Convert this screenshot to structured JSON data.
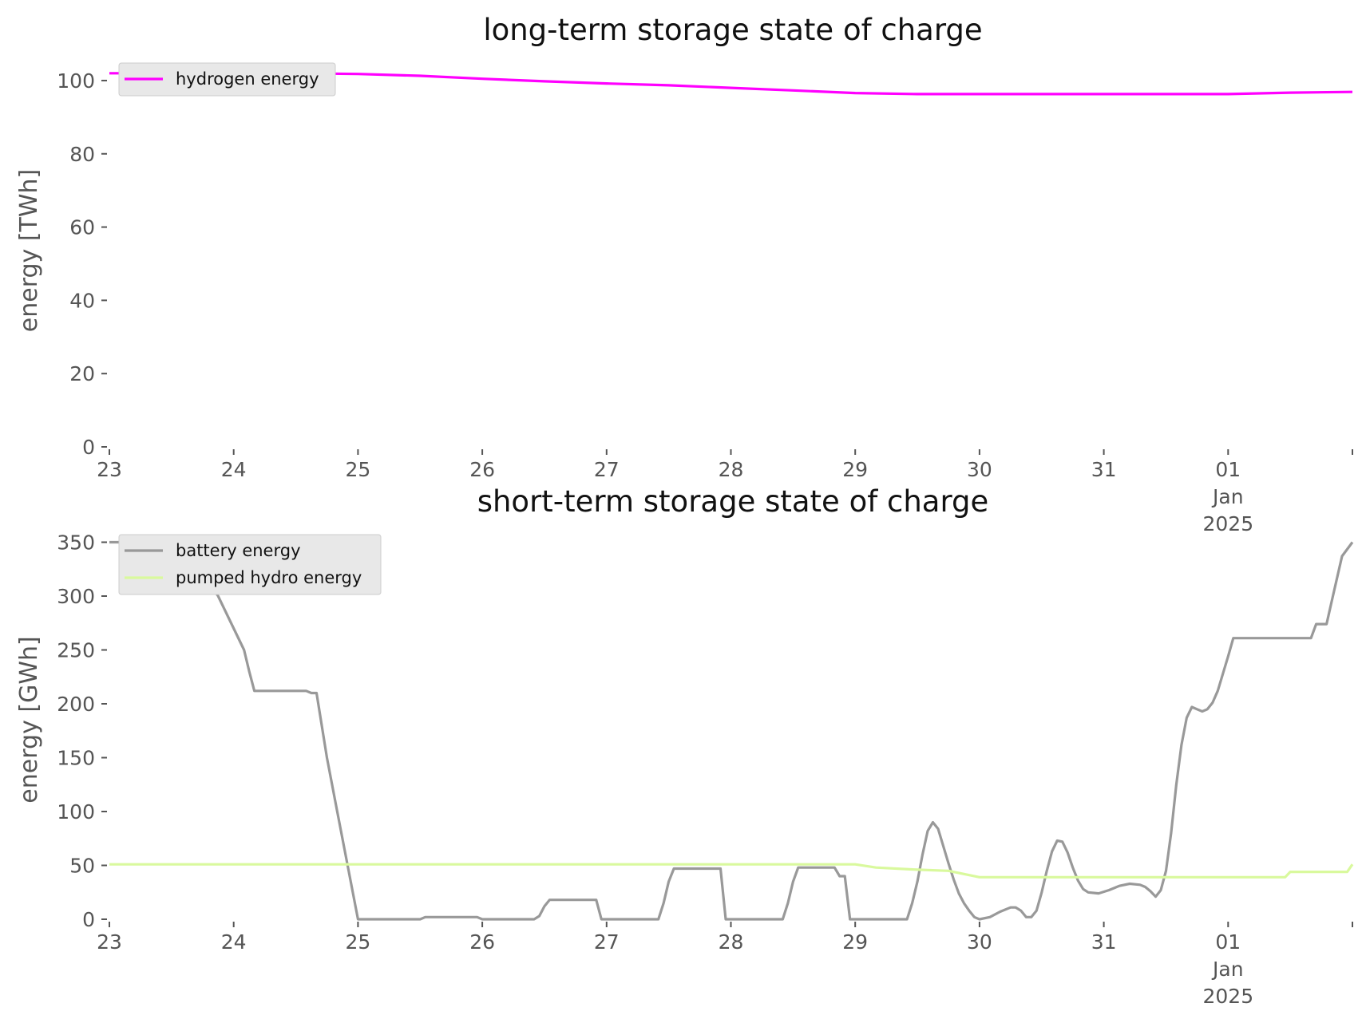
{
  "chart_data": [
    {
      "type": "line",
      "title": "long-term storage state of charge",
      "xlabel": "",
      "ylabel": "energy [TWh]",
      "ylim": [
        0,
        105
      ],
      "xlim": [
        "2024-12-23 00:00",
        "2025-01-02 00:00"
      ],
      "grid": false,
      "legend": "top-left",
      "y_ticks": [
        0,
        20,
        40,
        60,
        80,
        100
      ],
      "x_ticks": [
        {
          "at": "2024-12-23",
          "label": "23"
        },
        {
          "at": "2024-12-24",
          "label": "24"
        },
        {
          "at": "2024-12-25",
          "label": "25"
        },
        {
          "at": "2024-12-26",
          "label": "26"
        },
        {
          "at": "2024-12-27",
          "label": "27"
        },
        {
          "at": "2024-12-28",
          "label": "28"
        },
        {
          "at": "2024-12-29",
          "label": "29"
        },
        {
          "at": "2024-12-30",
          "label": "30"
        },
        {
          "at": "2024-12-31",
          "label": "31"
        },
        {
          "at": "2025-01-01",
          "label": "01\nJan\n2025"
        }
      ],
      "series": [
        {
          "name": "hydrogen energy",
          "color": "#ff00ff",
          "points": [
            [
              "2024-12-23 00:00",
              102.0
            ],
            [
              "2024-12-23 12:00",
              102.0
            ],
            [
              "2024-12-24 00:00",
              102.0
            ],
            [
              "2024-12-24 12:00",
              102.0
            ],
            [
              "2024-12-25 00:00",
              101.8
            ],
            [
              "2024-12-25 12:00",
              101.3
            ],
            [
              "2024-12-26 00:00",
              100.5
            ],
            [
              "2024-12-26 12:00",
              99.8
            ],
            [
              "2024-12-27 00:00",
              99.2
            ],
            [
              "2024-12-27 12:00",
              98.7
            ],
            [
              "2024-12-28 00:00",
              98.0
            ],
            [
              "2024-12-28 12:00",
              97.3
            ],
            [
              "2024-12-29 00:00",
              96.6
            ],
            [
              "2024-12-29 12:00",
              96.3
            ],
            [
              "2024-12-30 00:00",
              96.3
            ],
            [
              "2024-12-30 12:00",
              96.3
            ],
            [
              "2024-12-31 00:00",
              96.3
            ],
            [
              "2024-12-31 12:00",
              96.3
            ],
            [
              "2025-01-01 00:00",
              96.3
            ],
            [
              "2025-01-01 12:00",
              96.7
            ],
            [
              "2025-01-02 00:00",
              96.9
            ]
          ]
        }
      ]
    },
    {
      "type": "line",
      "title": "short-term storage state of charge",
      "xlabel": "",
      "ylabel": "energy [GWh]",
      "ylim": [
        0,
        360
      ],
      "xlim": [
        "2024-12-23 00:00",
        "2025-01-02 00:00"
      ],
      "grid": false,
      "legend": "top-left",
      "y_ticks": [
        0,
        50,
        100,
        150,
        200,
        250,
        300,
        350
      ],
      "x_ticks": [
        {
          "at": "2024-12-23",
          "label": "23"
        },
        {
          "at": "2024-12-24",
          "label": "24"
        },
        {
          "at": "2024-12-25",
          "label": "25"
        },
        {
          "at": "2024-12-26",
          "label": "26"
        },
        {
          "at": "2024-12-27",
          "label": "27"
        },
        {
          "at": "2024-12-28",
          "label": "28"
        },
        {
          "at": "2024-12-29",
          "label": "29"
        },
        {
          "at": "2024-12-30",
          "label": "30"
        },
        {
          "at": "2024-12-31",
          "label": "31"
        },
        {
          "at": "2025-01-01",
          "label": "01\nJan\n2025"
        }
      ],
      "series": [
        {
          "name": "battery energy",
          "color": "#999999",
          "points": [
            [
              "2024-12-23 00:00",
              350
            ],
            [
              "2024-12-23 15:00",
              350
            ],
            [
              "2024-12-23 18:00",
              320
            ],
            [
              "2024-12-23 21:00",
              300
            ],
            [
              "2024-12-24 00:00",
              270
            ],
            [
              "2024-12-24 02:00",
              250
            ],
            [
              "2024-12-24 03:00",
              230
            ],
            [
              "2024-12-24 04:00",
              212
            ],
            [
              "2024-12-24 14:00",
              212
            ],
            [
              "2024-12-24 15:00",
              210
            ],
            [
              "2024-12-24 16:00",
              210
            ],
            [
              "2024-12-24 18:00",
              150
            ],
            [
              "2024-12-24 20:00",
              100
            ],
            [
              "2024-12-24 22:00",
              50
            ],
            [
              "2024-12-25 00:00",
              0
            ],
            [
              "2024-12-25 12:00",
              0
            ],
            [
              "2024-12-25 13:00",
              2
            ],
            [
              "2024-12-25 23:00",
              2
            ],
            [
              "2024-12-26 00:00",
              0
            ],
            [
              "2024-12-26 10:00",
              0
            ],
            [
              "2024-12-26 11:00",
              3
            ],
            [
              "2024-12-26 12:00",
              12
            ],
            [
              "2024-12-26 13:00",
              18
            ],
            [
              "2024-12-26 22:00",
              18
            ],
            [
              "2024-12-26 23:00",
              0
            ],
            [
              "2024-12-27 10:00",
              0
            ],
            [
              "2024-12-27 11:00",
              15
            ],
            [
              "2024-12-27 12:00",
              35
            ],
            [
              "2024-12-27 13:00",
              47
            ],
            [
              "2024-12-27 22:00",
              47
            ],
            [
              "2024-12-27 23:00",
              0
            ],
            [
              "2024-12-28 10:00",
              0
            ],
            [
              "2024-12-28 11:00",
              15
            ],
            [
              "2024-12-28 12:00",
              35
            ],
            [
              "2024-12-28 13:00",
              48
            ],
            [
              "2024-12-28 20:00",
              48
            ],
            [
              "2024-12-28 21:00",
              40
            ],
            [
              "2024-12-28 22:00",
              40
            ],
            [
              "2024-12-28 23:00",
              0
            ],
            [
              "2024-12-29 10:00",
              0
            ],
            [
              "2024-12-29 11:00",
              15
            ],
            [
              "2024-12-29 12:00",
              35
            ],
            [
              "2024-12-29 13:00",
              60
            ],
            [
              "2024-12-29 14:00",
              82
            ],
            [
              "2024-12-29 15:00",
              90
            ],
            [
              "2024-12-29 16:00",
              84
            ],
            [
              "2024-12-29 17:00",
              68
            ],
            [
              "2024-12-29 18:00",
              52
            ],
            [
              "2024-12-29 19:00",
              37
            ],
            [
              "2024-12-29 20:00",
              24
            ],
            [
              "2024-12-29 21:00",
              15
            ],
            [
              "2024-12-29 22:00",
              8
            ],
            [
              "2024-12-29 23:00",
              2
            ],
            [
              "2024-12-30 00:00",
              0
            ],
            [
              "2024-12-30 02:00",
              2
            ],
            [
              "2024-12-30 04:00",
              7
            ],
            [
              "2024-12-30 06:00",
              11
            ],
            [
              "2024-12-30 07:00",
              11
            ],
            [
              "2024-12-30 08:00",
              8
            ],
            [
              "2024-12-30 09:00",
              2
            ],
            [
              "2024-12-30 10:00",
              2
            ],
            [
              "2024-12-30 11:00",
              8
            ],
            [
              "2024-12-30 12:00",
              25
            ],
            [
              "2024-12-30 13:00",
              45
            ],
            [
              "2024-12-30 14:00",
              63
            ],
            [
              "2024-12-30 15:00",
              73
            ],
            [
              "2024-12-30 16:00",
              72
            ],
            [
              "2024-12-30 17:00",
              62
            ],
            [
              "2024-12-30 18:00",
              48
            ],
            [
              "2024-12-30 19:00",
              36
            ],
            [
              "2024-12-30 20:00",
              28
            ],
            [
              "2024-12-30 21:00",
              25
            ],
            [
              "2024-12-30 23:00",
              24
            ],
            [
              "2024-12-31 01:00",
              27
            ],
            [
              "2024-12-31 03:00",
              31
            ],
            [
              "2024-12-31 05:00",
              33
            ],
            [
              "2024-12-31 07:00",
              32
            ],
            [
              "2024-12-31 08:00",
              30
            ],
            [
              "2024-12-31 09:00",
              26
            ],
            [
              "2024-12-31 10:00",
              21
            ],
            [
              "2024-12-31 11:00",
              27
            ],
            [
              "2024-12-31 12:00",
              45
            ],
            [
              "2024-12-31 13:00",
              80
            ],
            [
              "2024-12-31 14:00",
              125
            ],
            [
              "2024-12-31 15:00",
              162
            ],
            [
              "2024-12-31 16:00",
              187
            ],
            [
              "2024-12-31 17:00",
              197
            ],
            [
              "2024-12-31 18:00",
              195
            ],
            [
              "2024-12-31 19:00",
              193
            ],
            [
              "2024-12-31 20:00",
              195
            ],
            [
              "2024-12-31 21:00",
              201
            ],
            [
              "2024-12-31 22:00",
              212
            ],
            [
              "2024-12-31 23:00",
              228
            ],
            [
              "2025-01-01 00:00",
              244
            ],
            [
              "2025-01-01 01:00",
              261
            ],
            [
              "2025-01-01 16:00",
              261
            ],
            [
              "2025-01-01 17:00",
              274
            ],
            [
              "2025-01-01 19:00",
              274
            ],
            [
              "2025-01-01 20:00",
              295
            ],
            [
              "2025-01-01 21:00",
              316
            ],
            [
              "2025-01-01 22:00",
              337
            ],
            [
              "2025-01-02 00:00",
              350
            ]
          ]
        },
        {
          "name": "pumped hydro energy",
          "color": "#d9f99d",
          "points": [
            [
              "2024-12-23 00:00",
              51
            ],
            [
              "2024-12-28 23:00",
              51
            ],
            [
              "2024-12-29 00:00",
              51
            ],
            [
              "2024-12-29 04:00",
              48
            ],
            [
              "2024-12-29 12:00",
              46
            ],
            [
              "2024-12-29 18:00",
              45
            ],
            [
              "2024-12-30 00:00",
              39
            ],
            [
              "2024-12-30 12:00",
              39
            ],
            [
              "2024-12-31 00:00",
              39
            ],
            [
              "2025-01-01 00:00",
              39
            ],
            [
              "2025-01-01 11:00",
              39
            ],
            [
              "2025-01-01 12:00",
              44
            ],
            [
              "2025-01-01 23:00",
              44
            ],
            [
              "2025-01-02 00:00",
              51
            ]
          ]
        }
      ]
    }
  ]
}
